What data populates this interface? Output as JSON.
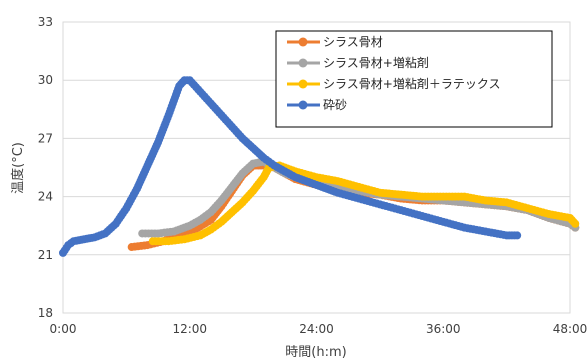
{
  "chart_data": {
    "type": "scatter",
    "title": "",
    "xlabel": "時間(h:m)",
    "ylabel": "温度(°C)",
    "xlim": [
      0,
      48
    ],
    "ylim": [
      18,
      33
    ],
    "x_ticks": [
      "0:00",
      "12:00",
      "24:00",
      "36:00",
      "48:00"
    ],
    "y_ticks": [
      "18",
      "21",
      "24",
      "27",
      "30",
      "33"
    ],
    "grid": "horizontal",
    "legend_position": "top-right",
    "series": [
      {
        "name": "シラス骨材",
        "color": "#ED7D31",
        "points": [
          [
            6.5,
            21.4
          ],
          [
            8,
            21.5
          ],
          [
            9.5,
            21.7
          ],
          [
            11,
            22.0
          ],
          [
            12.5,
            22.3
          ],
          [
            14,
            22.8
          ],
          [
            15,
            23.5
          ],
          [
            16,
            24.3
          ],
          [
            17,
            25.1
          ],
          [
            18,
            25.6
          ],
          [
            19,
            25.6
          ],
          [
            20,
            25.5
          ],
          [
            21,
            25.2
          ],
          [
            22,
            24.9
          ],
          [
            24,
            24.6
          ],
          [
            26,
            24.4
          ],
          [
            28,
            24.2
          ],
          [
            30,
            24.1
          ],
          [
            32,
            23.9
          ],
          [
            34,
            23.8
          ],
          [
            36,
            23.8
          ],
          [
            38,
            23.7
          ],
          [
            40,
            23.6
          ],
          [
            42,
            23.5
          ],
          [
            44,
            23.3
          ],
          [
            46,
            22.9
          ],
          [
            48,
            22.6
          ],
          [
            48.5,
            22.4
          ]
        ]
      },
      {
        "name": "シラス骨材+増粘剤",
        "color": "#A5A5A5",
        "points": [
          [
            7.5,
            22.1
          ],
          [
            9,
            22.1
          ],
          [
            10.5,
            22.2
          ],
          [
            12,
            22.5
          ],
          [
            13,
            22.8
          ],
          [
            14,
            23.2
          ],
          [
            15,
            23.8
          ],
          [
            16,
            24.5
          ],
          [
            17,
            25.2
          ],
          [
            18,
            25.7
          ],
          [
            19,
            25.8
          ],
          [
            20,
            25.5
          ],
          [
            21,
            25.2
          ],
          [
            22,
            25.0
          ],
          [
            24,
            24.7
          ],
          [
            26,
            24.5
          ],
          [
            28,
            24.3
          ],
          [
            30,
            24.1
          ],
          [
            32,
            24.0
          ],
          [
            34,
            23.9
          ],
          [
            36,
            23.8
          ],
          [
            38,
            23.7
          ],
          [
            40,
            23.6
          ],
          [
            42,
            23.5
          ],
          [
            44,
            23.3
          ],
          [
            46,
            22.9
          ],
          [
            48,
            22.6
          ],
          [
            48.5,
            22.4
          ]
        ]
      },
      {
        "name": "シラス骨材+増粘剤＋ラテックス",
        "color": "#FFC000",
        "points": [
          [
            8.5,
            21.7
          ],
          [
            10,
            21.7
          ],
          [
            11.5,
            21.8
          ],
          [
            13,
            22.0
          ],
          [
            14,
            22.3
          ],
          [
            15,
            22.7
          ],
          [
            16,
            23.2
          ],
          [
            17,
            23.7
          ],
          [
            18,
            24.3
          ],
          [
            19,
            25.0
          ],
          [
            19.5,
            25.5
          ],
          [
            20.5,
            25.6
          ],
          [
            22,
            25.3
          ],
          [
            24,
            25.0
          ],
          [
            26,
            24.8
          ],
          [
            28,
            24.5
          ],
          [
            30,
            24.2
          ],
          [
            32,
            24.1
          ],
          [
            34,
            24.0
          ],
          [
            36,
            24.0
          ],
          [
            38,
            24.0
          ],
          [
            40,
            23.8
          ],
          [
            42,
            23.7
          ],
          [
            44,
            23.4
          ],
          [
            46,
            23.1
          ],
          [
            48,
            22.9
          ],
          [
            48.5,
            22.6
          ]
        ]
      },
      {
        "name": "砕砂",
        "color": "#4472C4",
        "points": [
          [
            0,
            21.1
          ],
          [
            0.5,
            21.5
          ],
          [
            1,
            21.7
          ],
          [
            2,
            21.8
          ],
          [
            3,
            21.9
          ],
          [
            4,
            22.1
          ],
          [
            5,
            22.6
          ],
          [
            6,
            23.4
          ],
          [
            7,
            24.4
          ],
          [
            8,
            25.6
          ],
          [
            9,
            26.8
          ],
          [
            10,
            28.2
          ],
          [
            11,
            29.7
          ],
          [
            11.5,
            30.0
          ],
          [
            12,
            30.0
          ],
          [
            13,
            29.4
          ],
          [
            14,
            28.8
          ],
          [
            15,
            28.2
          ],
          [
            16,
            27.6
          ],
          [
            17,
            27.0
          ],
          [
            18,
            26.5
          ],
          [
            19,
            26.0
          ],
          [
            20,
            25.6
          ],
          [
            21,
            25.3
          ],
          [
            22,
            25.0
          ],
          [
            24,
            24.6
          ],
          [
            26,
            24.2
          ],
          [
            28,
            23.9
          ],
          [
            30,
            23.6
          ],
          [
            32,
            23.3
          ],
          [
            34,
            23.0
          ],
          [
            36,
            22.7
          ],
          [
            38,
            22.4
          ],
          [
            40,
            22.2
          ],
          [
            42,
            22.0
          ],
          [
            43,
            22.0
          ]
        ]
      }
    ]
  }
}
